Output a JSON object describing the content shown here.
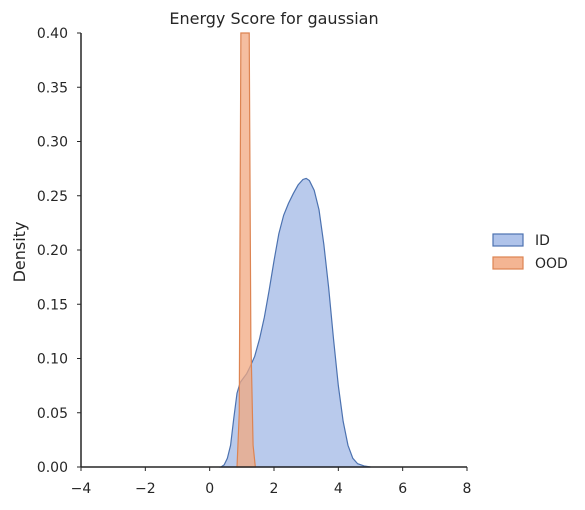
{
  "chart_data": {
    "type": "area",
    "title": "Energy Score for gaussian",
    "xlabel": "",
    "ylabel": "Density",
    "xlim": [
      -4,
      8
    ],
    "ylim": [
      0,
      0.4
    ],
    "x_ticks": [
      "−4",
      "−2",
      "0",
      "2",
      "4",
      "6",
      "8"
    ],
    "y_ticks": [
      "0.00",
      "0.05",
      "0.10",
      "0.15",
      "0.20",
      "0.25",
      "0.30",
      "0.35",
      "0.40"
    ],
    "grid": false,
    "legend_position": "right",
    "series": [
      {
        "name": "ID",
        "color": "#4c72b0",
        "fill": "#a1b8e6",
        "points": [
          [
            0.35,
            0.0
          ],
          [
            0.45,
            0.002
          ],
          [
            0.55,
            0.008
          ],
          [
            0.65,
            0.02
          ],
          [
            0.75,
            0.045
          ],
          [
            0.85,
            0.068
          ],
          [
            0.95,
            0.078
          ],
          [
            1.05,
            0.082
          ],
          [
            1.15,
            0.086
          ],
          [
            1.25,
            0.092
          ],
          [
            1.4,
            0.102
          ],
          [
            1.55,
            0.118
          ],
          [
            1.7,
            0.138
          ],
          [
            1.85,
            0.163
          ],
          [
            2.0,
            0.19
          ],
          [
            2.15,
            0.215
          ],
          [
            2.3,
            0.232
          ],
          [
            2.45,
            0.243
          ],
          [
            2.6,
            0.252
          ],
          [
            2.75,
            0.26
          ],
          [
            2.9,
            0.265
          ],
          [
            3.0,
            0.266
          ],
          [
            3.1,
            0.264
          ],
          [
            3.25,
            0.255
          ],
          [
            3.4,
            0.237
          ],
          [
            3.55,
            0.205
          ],
          [
            3.7,
            0.165
          ],
          [
            3.85,
            0.118
          ],
          [
            4.0,
            0.075
          ],
          [
            4.15,
            0.042
          ],
          [
            4.3,
            0.02
          ],
          [
            4.45,
            0.008
          ],
          [
            4.6,
            0.003
          ],
          [
            4.8,
            0.001
          ],
          [
            5.0,
            0.0
          ]
        ]
      },
      {
        "name": "OOD",
        "color": "#dd8452",
        "fill": "#f2a880",
        "points": [
          [
            0.85,
            0.0
          ],
          [
            0.92,
            0.05
          ],
          [
            0.97,
            0.4
          ],
          [
            1.03,
            0.4
          ],
          [
            1.1,
            0.4
          ],
          [
            1.18,
            0.4
          ],
          [
            1.23,
            0.4
          ],
          [
            1.28,
            0.12
          ],
          [
            1.35,
            0.02
          ],
          [
            1.42,
            0.0
          ]
        ]
      }
    ]
  }
}
